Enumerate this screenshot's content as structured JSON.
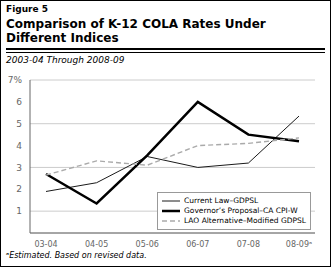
{
  "chart_data": {
    "type": "line",
    "title": "Comparison of K-12 COLA Rates Under Different Indices",
    "subtitle": "2003-04 Through 2008-09",
    "annotations": [
      "Figure 5",
      "ᵃEstimated. Based on revised data."
    ],
    "categories": [
      "03-04",
      "04-05",
      "05-06",
      "06-07",
      "07-08",
      "08-09ᵃ"
    ],
    "series": [
      {
        "name": "Current Law–GDPSL",
        "color": "#1a1a1a",
        "line_style": "solid",
        "values": [
          1.9,
          2.3,
          3.5,
          3.0,
          3.2,
          5.35
        ]
      },
      {
        "name": "Governor’s Proposal–CA CPI-W",
        "color": "#000000",
        "line_style": "solid",
        "values": [
          2.7,
          1.35,
          3.55,
          6.0,
          4.5,
          4.2
        ]
      },
      {
        "name": "LAO Alternative–Modified GDPSL",
        "color": "#aaaaaa",
        "line_style": "dashed",
        "values": [
          2.65,
          3.3,
          3.1,
          4.0,
          4.1,
          4.35
        ]
      }
    ],
    "ylim": [
      0,
      7
    ],
    "yticks": [
      1,
      2,
      3,
      4,
      5,
      6,
      {
        "value": 7,
        "label": "7%"
      }
    ],
    "grid": true,
    "legend": "lower right"
  }
}
